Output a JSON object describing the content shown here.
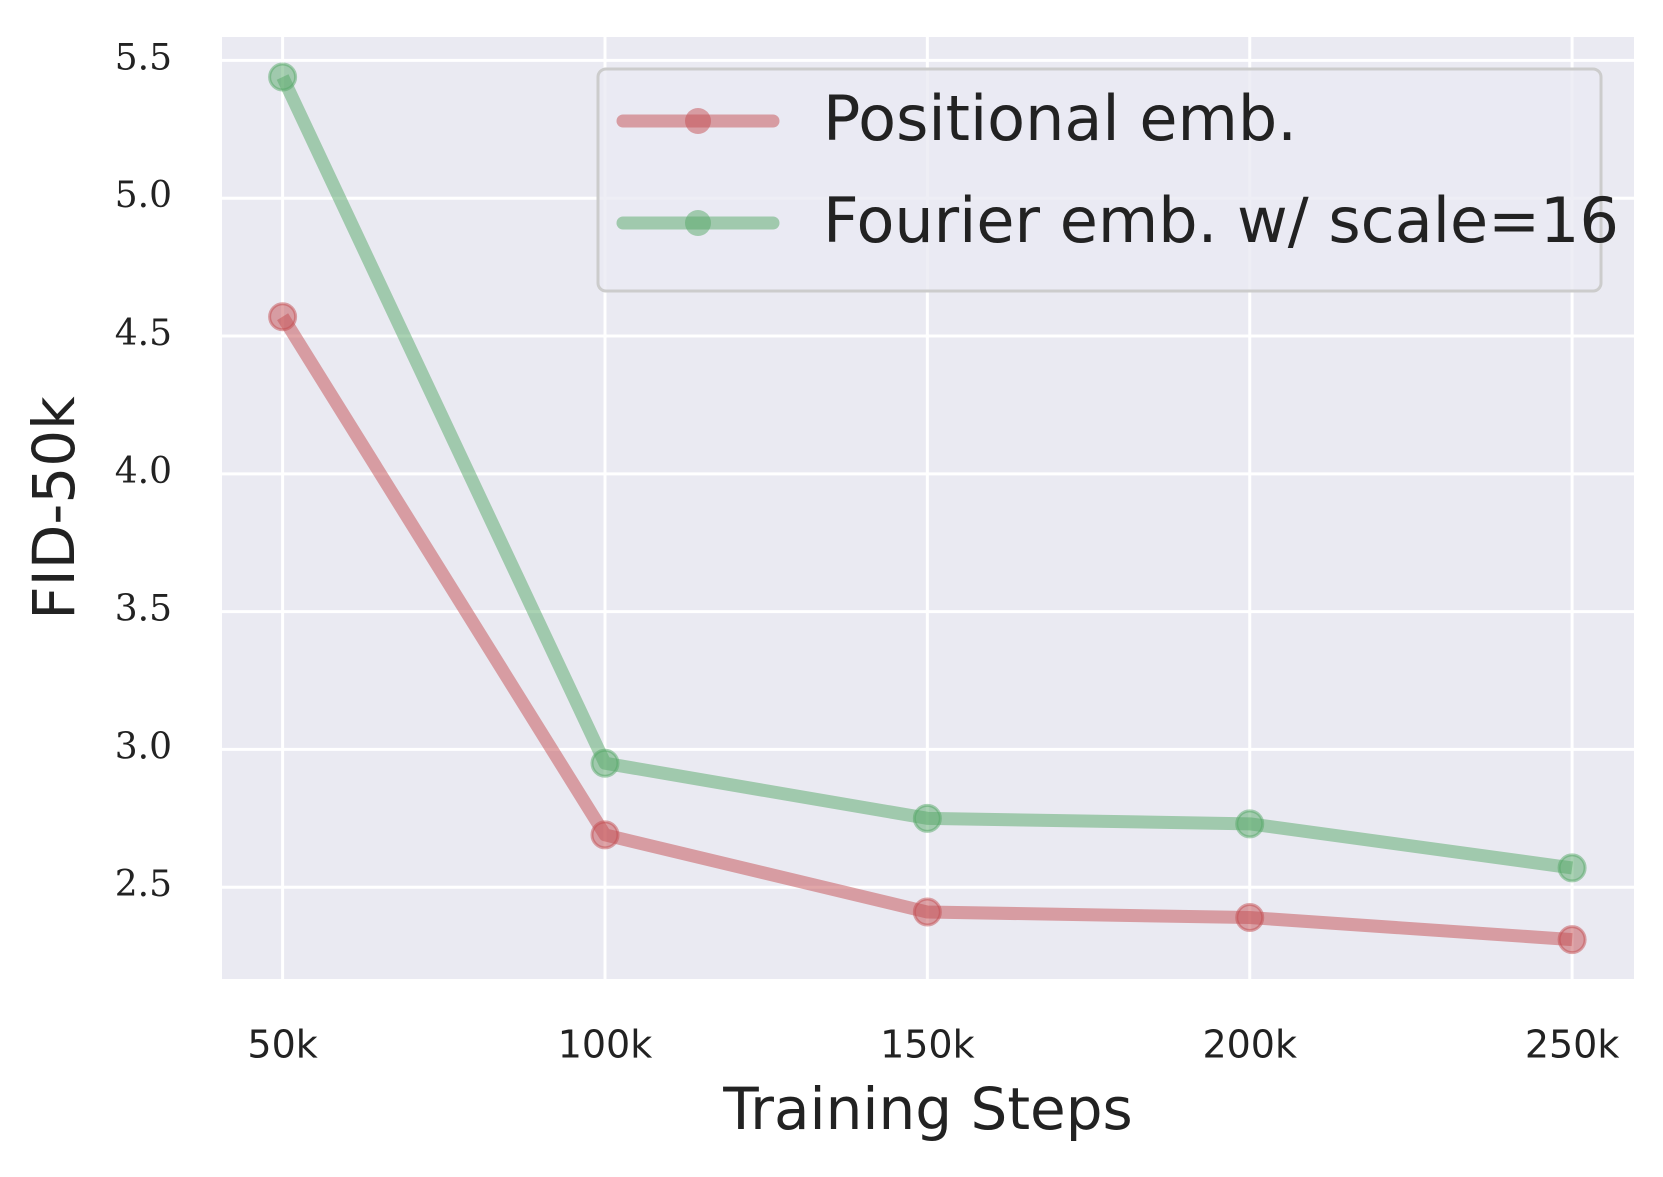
{
  "chart_data": {
    "type": "line",
    "xlabel": "Training Steps",
    "ylabel": "FID-50k",
    "x": [
      50000,
      100000,
      150000,
      200000,
      250000
    ],
    "xlim": [
      40600,
      259600
    ],
    "xticks": [
      {
        "value": 50000,
        "label": "50k"
      },
      {
        "value": 100000,
        "label": "100k"
      },
      {
        "value": 150000,
        "label": "150k"
      },
      {
        "value": 200000,
        "label": "200k"
      },
      {
        "value": 250000,
        "label": "250k"
      }
    ],
    "ylim": [
      2.167,
      5.585
    ],
    "yticks": [
      {
        "value": 2.5,
        "label": "2.5"
      },
      {
        "value": 3,
        "label": "3.0"
      },
      {
        "value": 3.5,
        "label": "3.5"
      },
      {
        "value": 4,
        "label": "4.0"
      },
      {
        "value": 4.5,
        "label": "4.5"
      },
      {
        "value": 5,
        "label": "5.0"
      },
      {
        "value": 5.5,
        "label": "5.5"
      }
    ],
    "grid": true,
    "legend": "upper right",
    "series": [
      {
        "name": "Positional emb.",
        "color": "#c44e52",
        "values": [
          4.57,
          2.69,
          2.41,
          2.39,
          2.31
        ]
      },
      {
        "name": "Fourier emb. w/ scale=16",
        "color": "#55a868",
        "values": [
          5.44,
          2.95,
          2.75,
          2.73,
          2.57
        ]
      }
    ]
  }
}
